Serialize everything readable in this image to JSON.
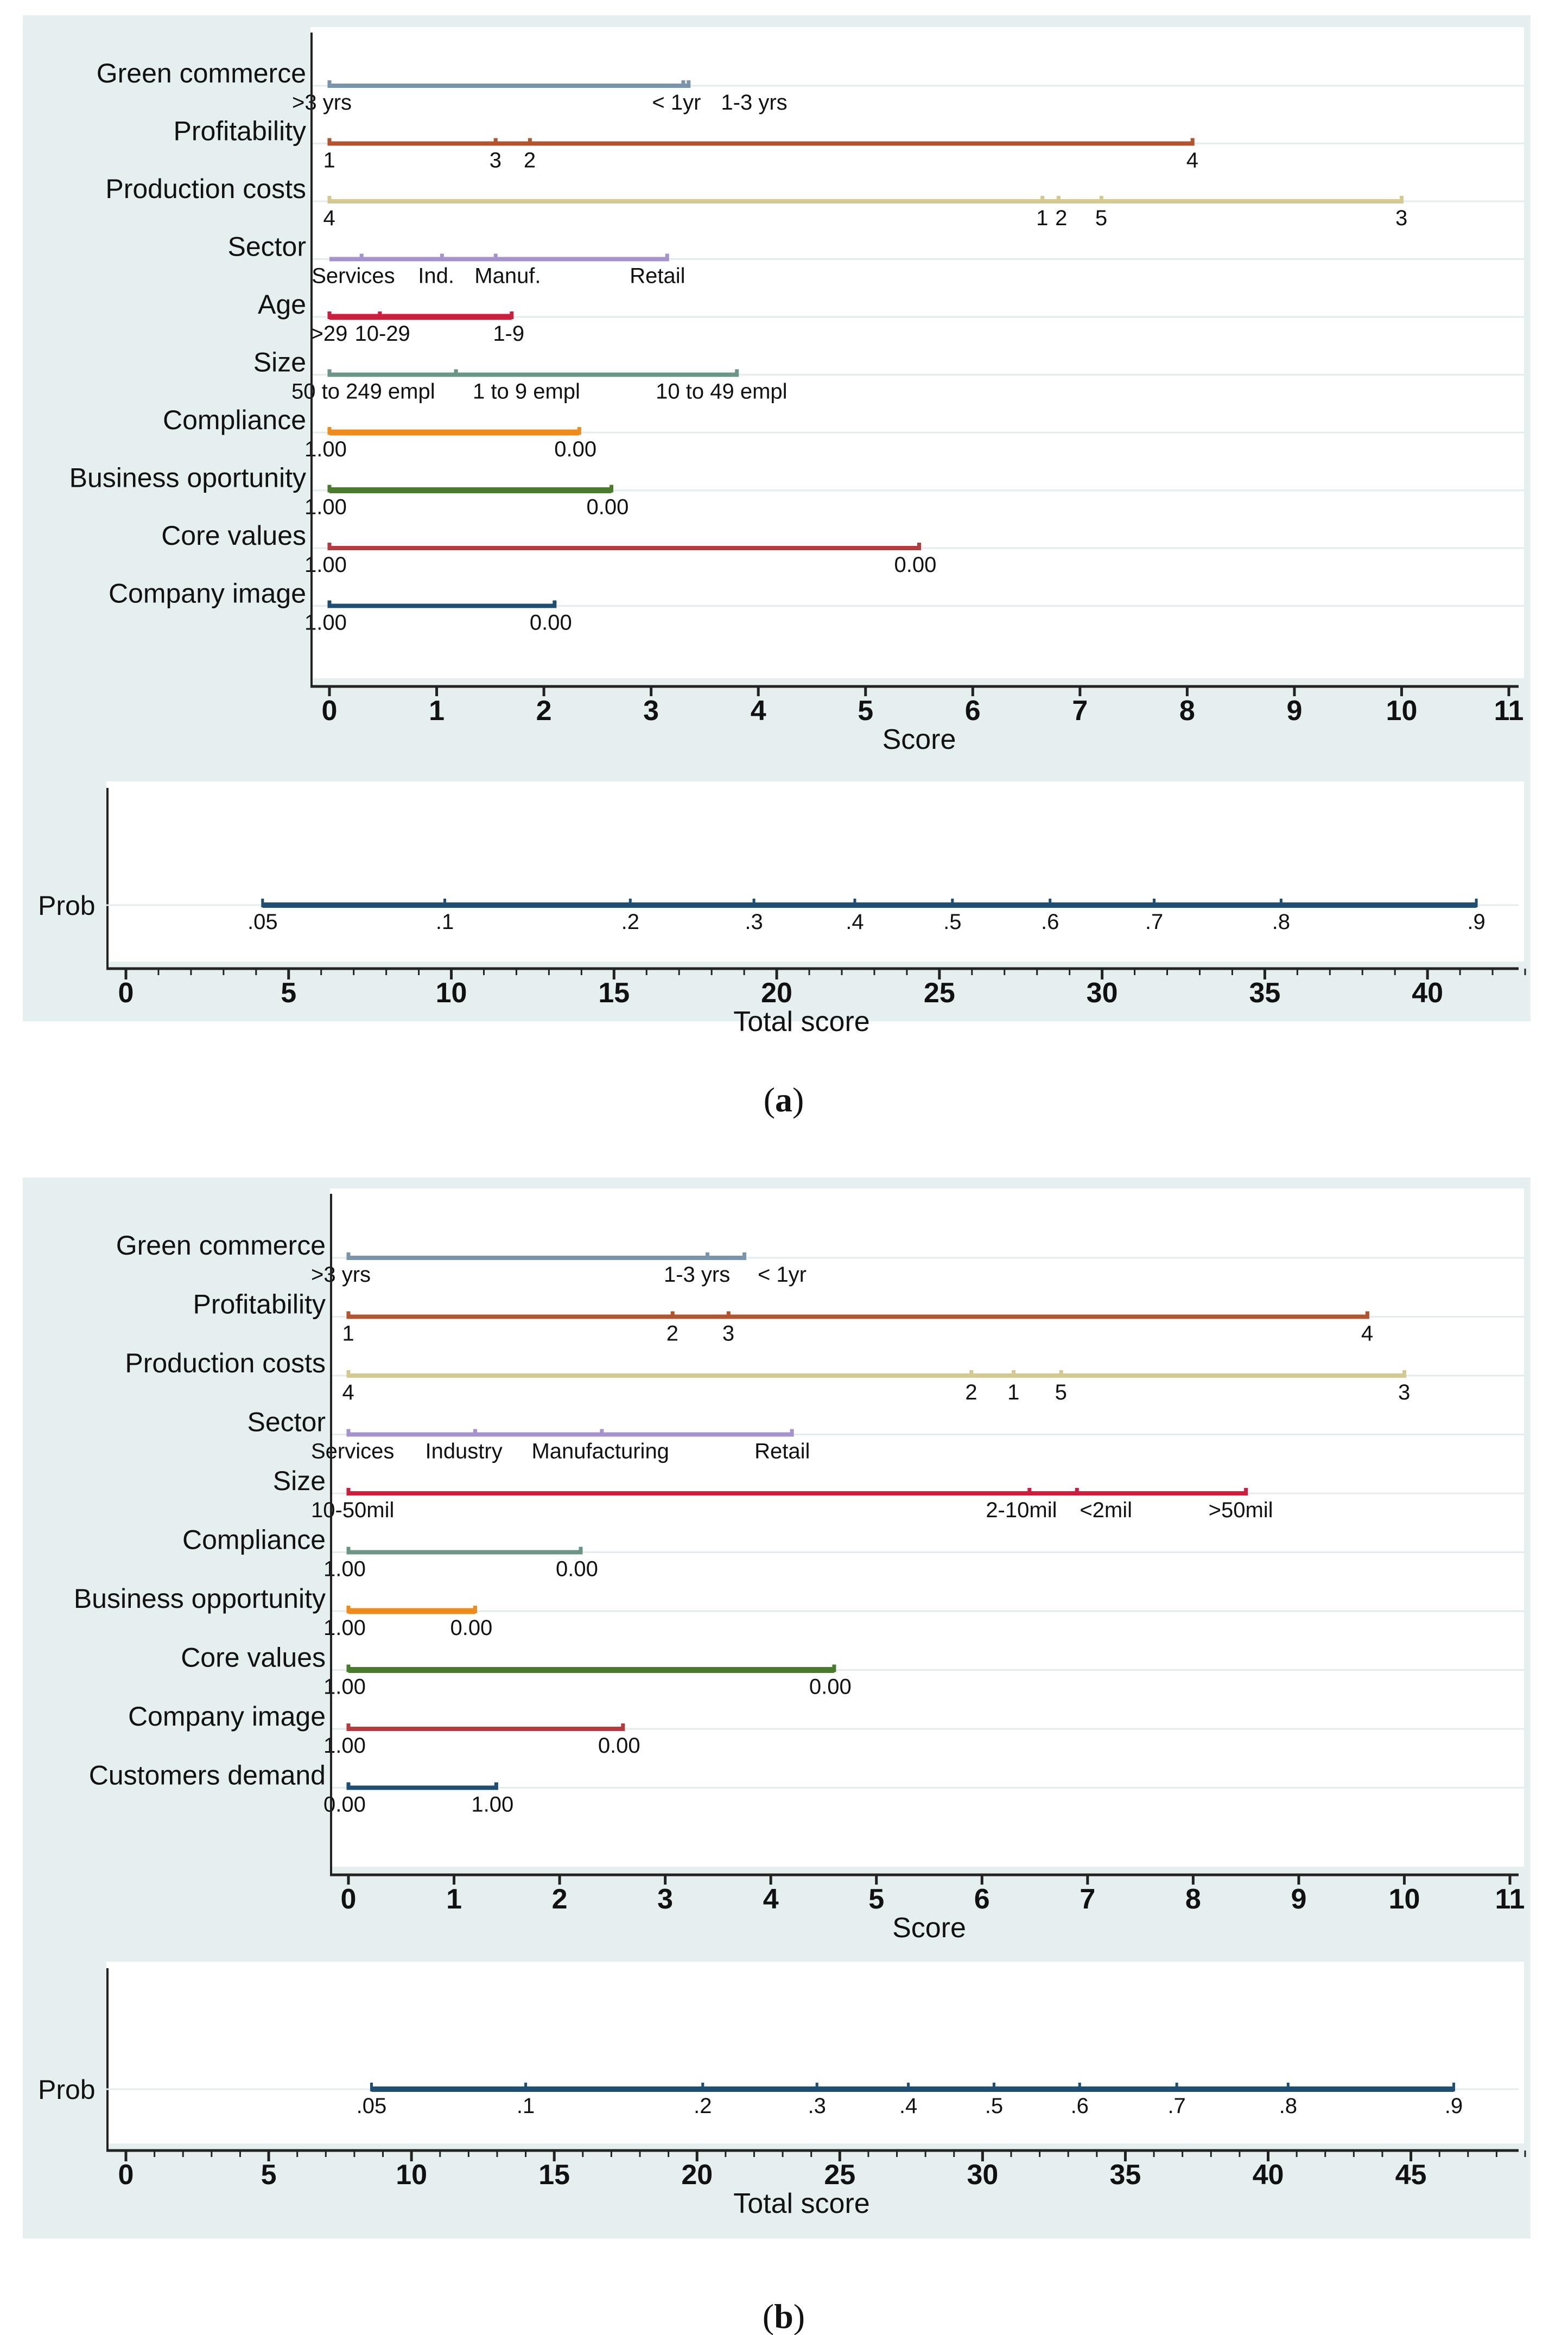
{
  "panels": [
    {
      "caption": "(a)",
      "caption_letter": "a",
      "score_axis": {
        "title": "Score",
        "range": [
          0,
          11
        ],
        "ticks": [
          0,
          1,
          2,
          3,
          4,
          5,
          6,
          7,
          8,
          9,
          10,
          11
        ],
        "minor_ticks": []
      },
      "total_axis": {
        "title": "Total score",
        "range": [
          0,
          43
        ],
        "ticks": [
          0,
          5,
          10,
          15,
          20,
          25,
          30,
          35,
          40
        ],
        "minor_step": 1
      },
      "chart_data": {
        "type": "nomogram",
        "variables": [
          {
            "name": "Green commerce",
            "color": "#7a95ab",
            "thick": false,
            "max": 3.35,
            "levels": [
              {
                "label": ">3 yrs",
                "value": 0
              },
              {
                "label": "< 1yr",
                "value": 3.3
              },
              {
                "label": "1-3 yrs",
                "value": 3.35
              }
            ]
          },
          {
            "name": "Profitability",
            "color": "#b5532c",
            "thick": false,
            "max": 8.05,
            "levels": [
              {
                "label": "1",
                "value": 0
              },
              {
                "label": "3",
                "value": 1.55
              },
              {
                "label": "2",
                "value": 1.87
              },
              {
                "label": "4",
                "value": 8.05
              }
            ]
          },
          {
            "name": "Production costs",
            "color": "#d4c98e",
            "thick": false,
            "max": 10,
            "levels": [
              {
                "label": "4",
                "value": 0
              },
              {
                "label": "1",
                "value": 6.65
              },
              {
                "label": "2",
                "value": 6.8
              },
              {
                "label": "5",
                "value": 7.2
              },
              {
                "label": "3",
                "value": 10
              }
            ]
          },
          {
            "name": "Sector",
            "color": "#a592cf",
            "thick": false,
            "max": 3.15,
            "levels": [
              {
                "label": "Services",
                "value": 0.3
              },
              {
                "label": "Ind.",
                "value": 1.05
              },
              {
                "label": "Manuf.",
                "value": 1.55
              },
              {
                "label": "Retail",
                "value": 3.15
              }
            ]
          },
          {
            "name": "Age",
            "color": "#cc1f3d",
            "thick": true,
            "max": 1.7,
            "levels": [
              {
                "label": ">29",
                "value": 0
              },
              {
                "label": "10-29",
                "value": 0.47
              },
              {
                "label": "1-9",
                "value": 1.7
              }
            ]
          },
          {
            "name": "Size",
            "color": "#6b9585",
            "thick": false,
            "max": 3.8,
            "levels": [
              {
                "label": "50 to 249 empl",
                "value": 0
              },
              {
                "label": "1 to 9 empl",
                "value": 1.18
              },
              {
                "label": "10 to 49 empl",
                "value": 3.8
              }
            ]
          },
          {
            "name": "Compliance",
            "color": "#f08a1a",
            "thick": true,
            "max": 2.33,
            "levels": [
              {
                "label": "1.00",
                "value": 0
              },
              {
                "label": "0.00",
                "value": 2.33
              }
            ]
          },
          {
            "name": "Business oportunity",
            "color": "#4a7a2c",
            "thick": true,
            "max": 2.63,
            "levels": [
              {
                "label": "1.00",
                "value": 0
              },
              {
                "label": "0.00",
                "value": 2.63
              }
            ]
          },
          {
            "name": "Core values",
            "color": "#b53a3f",
            "thick": false,
            "max": 5.5,
            "levels": [
              {
                "label": "1.00",
                "value": 0
              },
              {
                "label": "0.00",
                "value": 5.5
              }
            ]
          },
          {
            "name": "Company image",
            "color": "#1f4e74",
            "thick": false,
            "max": 2.1,
            "levels": [
              {
                "label": "1.00",
                "value": 0
              },
              {
                "label": "0.00",
                "value": 2.1
              }
            ]
          }
        ],
        "prob": {
          "label": "Prob",
          "color": "#1f4e74",
          "line_from_total": 4.2,
          "line_to_total": 41.5,
          "ticks": [
            {
              "label": ".05",
              "total": 4.2
            },
            {
              "label": ".1",
              "total": 9.8
            },
            {
              "label": ".2",
              "total": 15.5
            },
            {
              "label": ".3",
              "total": 19.3
            },
            {
              "label": ".4",
              "total": 22.4
            },
            {
              "label": ".5",
              "total": 25.4
            },
            {
              "label": ".6",
              "total": 28.4
            },
            {
              "label": ".7",
              "total": 31.6
            },
            {
              "label": ".8",
              "total": 35.5
            },
            {
              "label": ".9",
              "total": 41.5
            }
          ]
        }
      }
    },
    {
      "caption": "(b)",
      "caption_letter": "b",
      "score_axis": {
        "title": "Score",
        "range": [
          0,
          11
        ],
        "ticks": [
          0,
          1,
          2,
          3,
          4,
          5,
          6,
          7,
          8,
          9,
          10,
          11
        ],
        "minor_ticks": []
      },
      "total_axis": {
        "title": "Total score",
        "range": [
          0,
          49
        ],
        "ticks": [
          0,
          5,
          10,
          15,
          20,
          25,
          30,
          35,
          40,
          45
        ],
        "minor_step": 1
      },
      "chart_data": {
        "type": "nomogram",
        "variables": [
          {
            "name": "Green commerce",
            "color": "#7a95ab",
            "thick": false,
            "max": 3.75,
            "levels": [
              {
                "label": ">3 yrs",
                "value": 0
              },
              {
                "label": "1-3 yrs",
                "value": 3.4
              },
              {
                "label": "< 1yr",
                "value": 3.75
              }
            ]
          },
          {
            "name": "Profitability",
            "color": "#b5532c",
            "thick": false,
            "max": 9.65,
            "levels": [
              {
                "label": "1",
                "value": 0
              },
              {
                "label": "2",
                "value": 3.07
              },
              {
                "label": "3",
                "value": 3.6
              },
              {
                "label": "4",
                "value": 9.65
              }
            ]
          },
          {
            "name": "Production costs",
            "color": "#d4c98e",
            "thick": false,
            "max": 10,
            "levels": [
              {
                "label": "4",
                "value": 0
              },
              {
                "label": "2",
                "value": 5.9
              },
              {
                "label": "1",
                "value": 6.3
              },
              {
                "label": "5",
                "value": 6.75
              },
              {
                "label": "3",
                "value": 10
              }
            ]
          },
          {
            "name": "Sector",
            "color": "#a592cf",
            "thick": false,
            "max": 4.2,
            "levels": [
              {
                "label": "Services",
                "value": 0
              },
              {
                "label": "Industry",
                "value": 1.2
              },
              {
                "label": "Manufacturing",
                "value": 2.4
              },
              {
                "label": "Retail",
                "value": 4.2
              }
            ]
          },
          {
            "name": "Size",
            "color": "#cc1f3d",
            "thick": false,
            "max": 8.5,
            "levels": [
              {
                "label": "10-50mil",
                "value": 0
              },
              {
                "label": "2-10mil",
                "value": 6.45
              },
              {
                "label": "<2mil",
                "value": 6.9
              },
              {
                "label": ">50mil",
                "value": 8.5
              }
            ]
          },
          {
            "name": "Compliance",
            "color": "#6b9585",
            "thick": false,
            "max": 2.2,
            "levels": [
              {
                "label": "1.00",
                "value": 0
              },
              {
                "label": "0.00",
                "value": 2.2
              }
            ]
          },
          {
            "name": "Business opportunity",
            "color": "#f08a1a",
            "thick": true,
            "max": 1.2,
            "levels": [
              {
                "label": "1.00",
                "value": 0
              },
              {
                "label": "0.00",
                "value": 1.2
              }
            ]
          },
          {
            "name": "Core values",
            "color": "#4a7a2c",
            "thick": true,
            "max": 4.6,
            "levels": [
              {
                "label": "1.00",
                "value": 0
              },
              {
                "label": "0.00",
                "value": 4.6
              }
            ]
          },
          {
            "name": "Company image",
            "color": "#b53a3f",
            "thick": false,
            "max": 2.6,
            "levels": [
              {
                "label": "1.00",
                "value": 0
              },
              {
                "label": "0.00",
                "value": 2.6
              }
            ]
          },
          {
            "name": "Customers demand",
            "color": "#1f4e74",
            "thick": false,
            "max": 1.4,
            "levels": [
              {
                "label": "0.00",
                "value": 0
              },
              {
                "label": "1.00",
                "value": 1.4
              }
            ]
          }
        ],
        "prob": {
          "label": "Prob",
          "color": "#1f4e74",
          "line_from_total": 8.6,
          "line_to_total": 46.5,
          "ticks": [
            {
              "label": ".05",
              "total": 8.6
            },
            {
              "label": ".1",
              "total": 14.0
            },
            {
              "label": ".2",
              "total": 20.2
            },
            {
              "label": ".3",
              "total": 24.2
            },
            {
              "label": ".4",
              "total": 27.4
            },
            {
              "label": ".5",
              "total": 30.4
            },
            {
              "label": ".6",
              "total": 33.4
            },
            {
              "label": ".7",
              "total": 36.8
            },
            {
              "label": ".8",
              "total": 40.7
            },
            {
              "label": ".9",
              "total": 46.5
            }
          ]
        }
      }
    }
  ]
}
